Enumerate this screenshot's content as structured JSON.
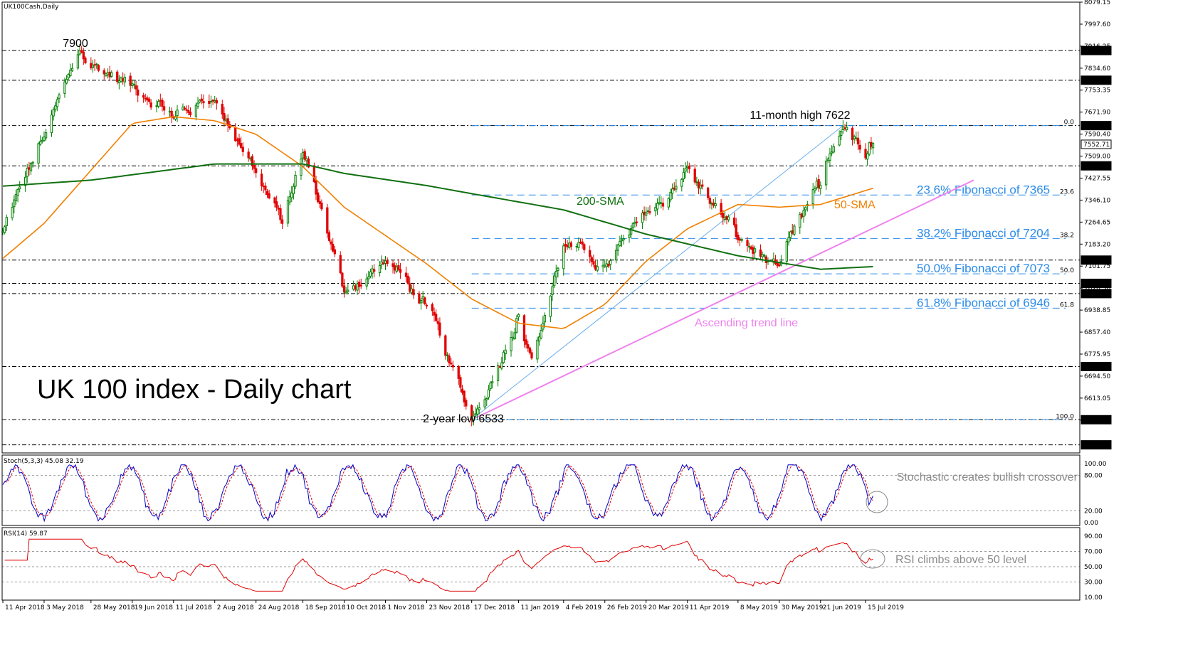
{
  "chart_data": {
    "type": "candlestick",
    "symbol_label": "UK100Cash,Daily",
    "title": "UK 100 index - Daily chart",
    "x_ticks": [
      "11 Apr 2018",
      "3 May 2018",
      "28 May 2018",
      "19 Jun 2018",
      "11 Jul 2018",
      "2 Aug 2018",
      "24 Aug 2018",
      "18 Sep 2018",
      "10 Oct 2018",
      "1 Nov 2018",
      "23 Nov 2018",
      "17 Dec 2018",
      "11 Jan 2019",
      "4 Feb 2019",
      "26 Feb 2019",
      "20 Mar 2019",
      "11 Apr 2019",
      "8 May 2019",
      "30 May 2019",
      "21 Jun 2019",
      "15 Jul 2019"
    ],
    "price_axis": {
      "ylim": [
        6410,
        8079.15
      ],
      "ticks": [
        "8079.15",
        "7997.60",
        "7916.25",
        "7834.60",
        "7753.35",
        "7671.90",
        "7590.40",
        "7509.00",
        "7427.55",
        "7346.10",
        "7264.65",
        "7183.20",
        "7101.75",
        "7020.30",
        "6938.85",
        "6857.40",
        "6775.95",
        "6694.50",
        "6613.05",
        "6531.60"
      ],
      "marked_levels": [
        {
          "label": "7900.00",
          "value": 7900
        },
        {
          "label": "7790.00",
          "value": 7790
        },
        {
          "label": "7622.00",
          "value": 7622
        },
        {
          "label": "7552.71",
          "value": 7552.71
        },
        {
          "label": "7473.00",
          "value": 7473
        },
        {
          "label": "7124.00",
          "value": 7124
        },
        {
          "label": "7038.00",
          "value": 7038
        },
        {
          "label": "7000.00",
          "value": 7000
        },
        {
          "label": "6730.00",
          "value": 6730
        },
        {
          "label": "6533.00",
          "value": 6533
        },
        {
          "label": "6440.00",
          "value": 6440
        }
      ]
    },
    "fibonacci": [
      {
        "pct": "0.0",
        "value": 7622,
        "label": ""
      },
      {
        "pct": "23.6",
        "value": 7365,
        "label": "23.6% Fibonacci of 7365"
      },
      {
        "pct": "38.2",
        "value": 7204,
        "label": "38.2% Fibonacci of 7204"
      },
      {
        "pct": "50.0",
        "value": 7073,
        "label": "50.0% Fibonacci of 7073"
      },
      {
        "pct": "61.8",
        "value": 6946,
        "label": "61.8% Fibonacci of 6946"
      },
      {
        "pct": "100.0",
        "value": 6533,
        "label": ""
      }
    ],
    "annotations": {
      "high_7900": "7900",
      "high_11m": "11-month high 7622",
      "low_2y": "2-year low 6533",
      "sma200": "200-SMA",
      "sma50": "50-SMA",
      "trendline": "Ascending trend line"
    },
    "key_points": [
      {
        "date": "11 Apr 2018",
        "close": 7230
      },
      {
        "date": "3 May 2018",
        "close": 7580
      },
      {
        "date": "22 May 2018",
        "close": 7900
      },
      {
        "date": "11 Jul 2018",
        "close": 7650
      },
      {
        "date": "2 Aug 2018",
        "close": 7720
      },
      {
        "date": "24 Aug 2018",
        "close": 7450
      },
      {
        "date": "7 Sep 2018",
        "close": 7260
      },
      {
        "date": "18 Sep 2018",
        "close": 7520
      },
      {
        "date": "10 Oct 2018",
        "close": 7000
      },
      {
        "date": "1 Nov 2018",
        "close": 7120
      },
      {
        "date": "23 Nov 2018",
        "close": 6950
      },
      {
        "date": "17 Dec 2018",
        "close": 6533
      },
      {
        "date": "11 Jan 2019",
        "close": 6930
      },
      {
        "date": "18 Jan 2019",
        "close": 6760
      },
      {
        "date": "4 Feb 2019",
        "close": 7180
      },
      {
        "date": "26 Feb 2019",
        "close": 7100
      },
      {
        "date": "20 Mar 2019",
        "close": 7300
      },
      {
        "date": "11 Apr 2019",
        "close": 7470
      },
      {
        "date": "8 May 2019",
        "close": 7200
      },
      {
        "date": "30 May 2019",
        "close": 7100
      },
      {
        "date": "21 Jun 2019",
        "close": 7400
      },
      {
        "date": "3 Jul 2019",
        "close": 7622
      },
      {
        "date": "15 Jul 2019",
        "close": 7500
      },
      {
        "date": "19 Jul 2019",
        "close": 7552
      }
    ],
    "sma50_points": [
      {
        "date": "11 Apr 2018",
        "value": 7130
      },
      {
        "date": "3 May 2018",
        "value": 7260
      },
      {
        "date": "19 Jun 2018",
        "value": 7630
      },
      {
        "date": "11 Jul 2018",
        "value": 7655
      },
      {
        "date": "2 Aug 2018",
        "value": 7640
      },
      {
        "date": "24 Aug 2018",
        "value": 7590
      },
      {
        "date": "18 Sep 2018",
        "value": 7470
      },
      {
        "date": "10 Oct 2018",
        "value": 7320
      },
      {
        "date": "23 Nov 2018",
        "value": 7110
      },
      {
        "date": "17 Dec 2018",
        "value": 6980
      },
      {
        "date": "11 Jan 2019",
        "value": 6890
      },
      {
        "date": "4 Feb 2019",
        "value": 6870
      },
      {
        "date": "26 Feb 2019",
        "value": 6960
      },
      {
        "date": "20 Mar 2019",
        "value": 7120
      },
      {
        "date": "11 Apr 2019",
        "value": 7240
      },
      {
        "date": "8 May 2019",
        "value": 7330
      },
      {
        "date": "30 May 2019",
        "value": 7320
      },
      {
        "date": "21 Jun 2019",
        "value": 7330
      },
      {
        "date": "19 Jul 2019",
        "value": 7390
      }
    ],
    "sma200_points": [
      {
        "date": "11 Apr 2018",
        "value": 7398
      },
      {
        "date": "28 May 2018",
        "value": 7420
      },
      {
        "date": "11 Jul 2018",
        "value": 7460
      },
      {
        "date": "2 Aug 2018",
        "value": 7480
      },
      {
        "date": "18 Sep 2018",
        "value": 7480
      },
      {
        "date": "10 Oct 2018",
        "value": 7445
      },
      {
        "date": "23 Nov 2018",
        "value": 7400
      },
      {
        "date": "17 Dec 2018",
        "value": 7370
      },
      {
        "date": "4 Feb 2019",
        "value": 7310
      },
      {
        "date": "20 Mar 2019",
        "value": 7220
      },
      {
        "date": "8 May 2019",
        "value": 7140
      },
      {
        "date": "21 Jun 2019",
        "value": 7090
      },
      {
        "date": "19 Jul 2019",
        "value": 7100
      }
    ],
    "trendlines": {
      "ascending": [
        {
          "date": "17 Dec 2018",
          "value": 6533
        },
        {
          "date": "19 Jul 2019",
          "value": 7400
        }
      ],
      "fib_swing": [
        {
          "date": "17 Dec 2018",
          "value": 6533
        },
        {
          "date": "3 Jul 2019",
          "value": 7622
        }
      ]
    },
    "stochastic": {
      "label": "Stoch(5,3,3) 45.08 32.19",
      "ylim": [
        0,
        100
      ],
      "ticks": [
        "100.00",
        "80.00",
        "20.00",
        "0.00"
      ],
      "annotation": "Stochastic creates bullish crossover",
      "main_line_color": "#0000cc",
      "signal_line_color": "#e00000"
    },
    "rsi": {
      "label": "RSI(14) 59.87",
      "ylim": [
        10,
        90
      ],
      "ticks": [
        "90.00",
        "70.00",
        "50.00",
        "30.00",
        "10.00"
      ],
      "annotation": "RSI climbs above 50 level",
      "line_color": "#e00000"
    },
    "colors": {
      "up": "#008000",
      "down": "#e00000",
      "sma50": "#f08000",
      "sma200": "#107010",
      "trendline": "#ee82ee",
      "fib": "#2a8ae8",
      "swing": "#6aaee8"
    }
  }
}
